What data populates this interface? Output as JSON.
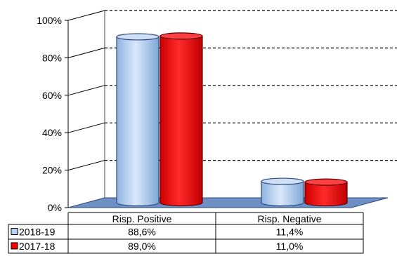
{
  "chart_data": {
    "type": "bar",
    "categories": [
      "Risp. Positive",
      "Risp. Negative"
    ],
    "series": [
      {
        "name": "2018-19",
        "values": [
          88.6,
          11.4
        ],
        "labels": [
          "88,6%",
          "11,4%"
        ],
        "color": "#b8d4f4"
      },
      {
        "name": "2017-18",
        "values": [
          89.0,
          11.0
        ],
        "labels": [
          "89,0%",
          "11,0%"
        ],
        "color": "#ff0000"
      }
    ],
    "yticks": [
      "0%",
      "20%",
      "40%",
      "60%",
      "80%",
      "100%"
    ],
    "ylim": [
      0,
      100
    ],
    "grid": true,
    "legend": "data-table"
  }
}
